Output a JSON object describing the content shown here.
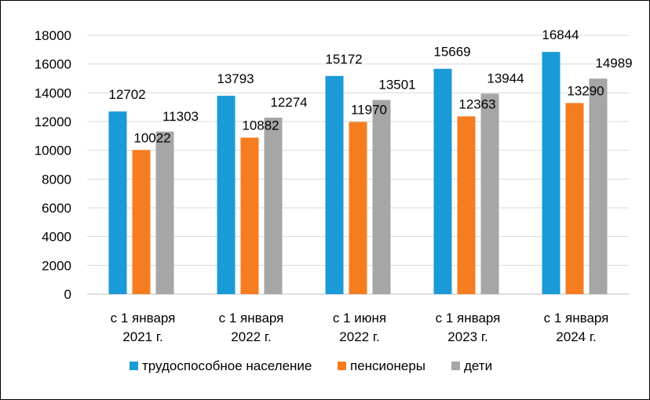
{
  "chart_data": {
    "type": "bar",
    "title": "",
    "xlabel": "",
    "ylabel": "",
    "ylim": [
      0,
      18000
    ],
    "yticks": [
      0,
      2000,
      4000,
      6000,
      8000,
      10000,
      12000,
      14000,
      16000,
      18000
    ],
    "grid": true,
    "legend_position": "bottom",
    "categories": [
      [
        "с 1 января",
        "2021 г."
      ],
      [
        "с 1 января",
        "2022 г."
      ],
      [
        "с 1 июня",
        "2022 г."
      ],
      [
        "с 1 января",
        "2023 г."
      ],
      [
        "с 1 января",
        "2024 г."
      ]
    ],
    "series": [
      {
        "name": "трудоспособное население",
        "color": "#1a9ad6",
        "values": [
          12702,
          13793,
          15172,
          15669,
          16844
        ]
      },
      {
        "name": "пенсионеры",
        "color": "#f57d20",
        "values": [
          10022,
          10882,
          11970,
          12363,
          13290
        ]
      },
      {
        "name": "дети",
        "color": "#a6a6a6",
        "values": [
          11303,
          12274,
          13501,
          13944,
          14989
        ]
      }
    ]
  }
}
